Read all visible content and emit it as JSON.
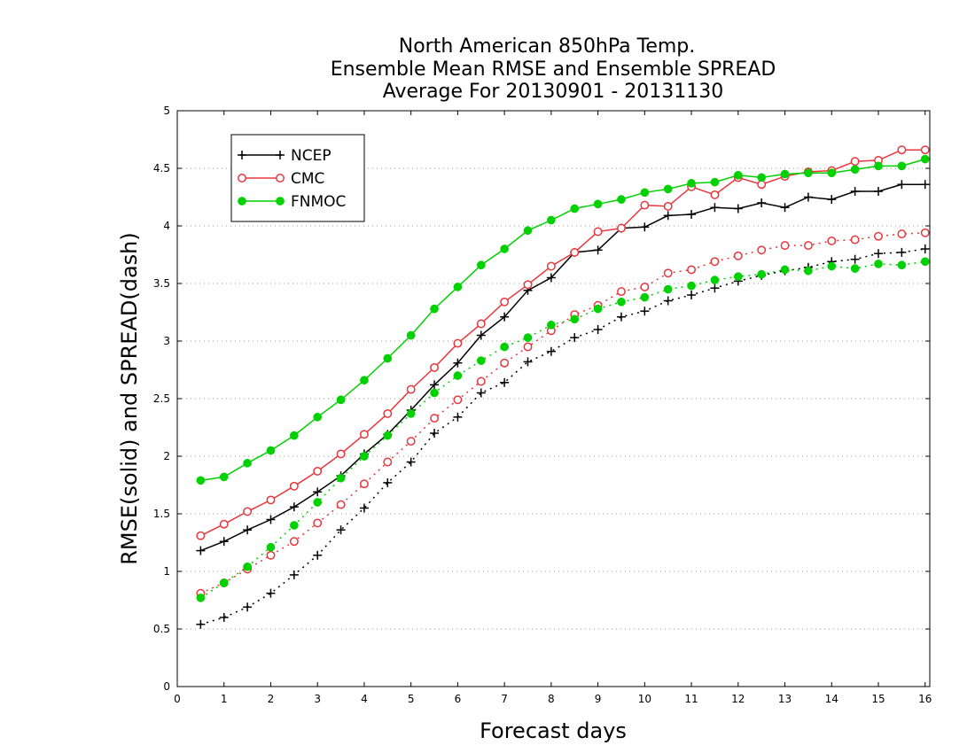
{
  "chart_data": {
    "type": "line",
    "title": [
      "North American 850hPa Temp.",
      "Ensemble Mean RMSE and Ensemble SPREAD",
      "Average For 20130901 - 20131130"
    ],
    "xlabel": "Forecast days",
    "ylabel": "RMSE(solid) and SPREAD(dash)",
    "xlim": [
      0,
      16.1
    ],
    "ylim": [
      0,
      5
    ],
    "xticks": [
      0,
      1,
      2,
      3,
      4,
      5,
      6,
      7,
      8,
      9,
      10,
      11,
      12,
      13,
      14,
      15,
      16
    ],
    "xtick_labels": [
      "0",
      "1",
      "2",
      "3",
      "4",
      "5",
      "6",
      "7",
      "8",
      "9",
      "10",
      "11",
      "12",
      "13",
      "14",
      "15",
      "16"
    ],
    "yticks": [
      0,
      0.5,
      1,
      1.5,
      2,
      2.5,
      3,
      3.5,
      4,
      4.5,
      5
    ],
    "ytick_labels": [
      "0",
      "0.5",
      "1",
      "1.5",
      "2",
      "2.5",
      "3",
      "3.5",
      "4",
      "4.5",
      "5"
    ],
    "grid": "horizontal dotted",
    "legend_position": "top-left",
    "x": [
      0.5,
      1,
      1.5,
      2,
      2.5,
      3,
      3.5,
      4,
      4.5,
      5,
      5.5,
      6,
      6.5,
      7,
      7.5,
      8,
      8.5,
      9,
      9.5,
      10,
      10.5,
      11,
      11.5,
      12,
      12.5,
      13,
      13.5,
      14,
      14.5,
      15,
      15.5,
      16
    ],
    "series": [
      {
        "name": "NCEP",
        "metric": "rmse",
        "style": "solid",
        "marker": "plus",
        "color": "#000000",
        "values": [
          1.18,
          1.26,
          1.36,
          1.45,
          1.56,
          1.69,
          1.83,
          2.02,
          2.19,
          2.4,
          2.62,
          2.81,
          3.05,
          3.21,
          3.44,
          3.55,
          3.77,
          3.79,
          3.98,
          3.99,
          4.09,
          4.1,
          4.16,
          4.15,
          4.2,
          4.16,
          4.25,
          4.23,
          4.3,
          4.3,
          4.36,
          4.36
        ]
      },
      {
        "name": "CMC",
        "metric": "rmse",
        "style": "solid",
        "marker": "open-circle",
        "color": "#e8363d",
        "values": [
          1.31,
          1.41,
          1.52,
          1.62,
          1.74,
          1.87,
          2.02,
          2.19,
          2.37,
          2.58,
          2.77,
          2.98,
          3.15,
          3.34,
          3.49,
          3.65,
          3.77,
          3.95,
          3.98,
          4.18,
          4.17,
          4.34,
          4.27,
          4.42,
          4.36,
          4.43,
          4.47,
          4.48,
          4.56,
          4.57,
          4.66,
          4.66
        ]
      },
      {
        "name": "FNMOC",
        "metric": "rmse",
        "style": "solid",
        "marker": "filled-circle",
        "color": "#00d100",
        "values": [
          1.79,
          1.82,
          1.94,
          2.05,
          2.18,
          2.34,
          2.49,
          2.66,
          2.85,
          3.05,
          3.28,
          3.47,
          3.66,
          3.8,
          3.96,
          4.05,
          4.15,
          4.19,
          4.23,
          4.29,
          4.32,
          4.37,
          4.38,
          4.44,
          4.42,
          4.45,
          4.46,
          4.46,
          4.49,
          4.52,
          4.52,
          4.58
        ]
      },
      {
        "name": "NCEP",
        "metric": "spread",
        "style": "dash",
        "marker": "plus",
        "color": "#000000",
        "values": [
          0.54,
          0.6,
          0.69,
          0.81,
          0.97,
          1.14,
          1.36,
          1.55,
          1.77,
          1.95,
          2.2,
          2.34,
          2.55,
          2.64,
          2.82,
          2.91,
          3.03,
          3.1,
          3.21,
          3.26,
          3.35,
          3.4,
          3.46,
          3.52,
          3.57,
          3.61,
          3.64,
          3.69,
          3.71,
          3.76,
          3.77,
          3.8
        ]
      },
      {
        "name": "CMC",
        "metric": "spread",
        "style": "dash",
        "marker": "open-circle",
        "color": "#e8363d",
        "values": [
          0.81,
          0.9,
          1.02,
          1.14,
          1.26,
          1.42,
          1.58,
          1.76,
          1.95,
          2.13,
          2.33,
          2.49,
          2.65,
          2.81,
          2.95,
          3.09,
          3.23,
          3.31,
          3.43,
          3.47,
          3.59,
          3.62,
          3.69,
          3.74,
          3.79,
          3.83,
          3.83,
          3.87,
          3.88,
          3.91,
          3.93,
          3.94
        ]
      },
      {
        "name": "FNMOC",
        "metric": "spread",
        "style": "dash",
        "marker": "filled-circle",
        "color": "#00d100",
        "values": [
          0.77,
          0.9,
          1.04,
          1.21,
          1.4,
          1.6,
          1.81,
          2.0,
          2.18,
          2.37,
          2.55,
          2.7,
          2.83,
          2.95,
          3.03,
          3.14,
          3.19,
          3.28,
          3.34,
          3.38,
          3.45,
          3.48,
          3.53,
          3.56,
          3.58,
          3.62,
          3.61,
          3.65,
          3.63,
          3.67,
          3.66,
          3.69
        ]
      }
    ],
    "legend": [
      {
        "name": "NCEP",
        "marker": "plus",
        "color": "#000000"
      },
      {
        "name": "CMC",
        "marker": "open-circle",
        "color": "#e8363d"
      },
      {
        "name": "FNMOC",
        "marker": "filled-circle",
        "color": "#00d100"
      }
    ]
  }
}
